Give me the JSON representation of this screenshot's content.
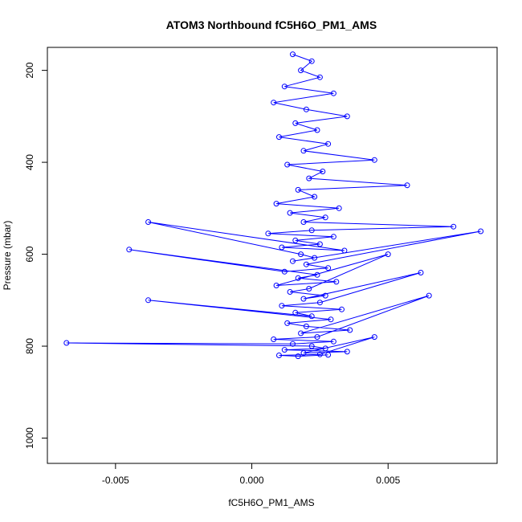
{
  "chart_data": {
    "type": "line",
    "title": "ATOM3 Northbound fC5H6O_PM1_AMS",
    "xlabel": "fC5H6O_PM1_AMS",
    "ylabel": "Pressure (mbar)",
    "xlim": [
      -0.0075,
      0.009
    ],
    "ylim": [
      1055,
      150
    ],
    "y_reversed": true,
    "xticks": [
      -0.005,
      0.0,
      0.005
    ],
    "xtick_labels": [
      "-0.005",
      "0.000",
      "0.005"
    ],
    "yticks": [
      200,
      400,
      600,
      800,
      1000
    ],
    "ytick_labels": [
      "200",
      "400",
      "600",
      "800",
      "1000"
    ],
    "grid": false,
    "legend": "none",
    "series": [
      {
        "color": "#0000ff",
        "marker": "open-circle",
        "x": [
          0.0015,
          0.0022,
          0.0018,
          0.0025,
          0.0012,
          0.003,
          0.0008,
          0.002,
          0.0035,
          0.0016,
          0.0024,
          0.001,
          0.0028,
          0.0019,
          0.0045,
          0.0013,
          0.0026,
          0.0021,
          0.0057,
          0.0017,
          0.0023,
          0.0009,
          0.0032,
          0.0014,
          0.0027,
          0.0019,
          0.0074,
          0.0022,
          0.0006,
          0.003,
          0.0016,
          0.0025,
          0.0011,
          0.0034,
          -0.0038,
          0.0018,
          0.0023,
          0.0015,
          0.0084,
          0.002,
          0.0028,
          0.0012,
          -0.0045,
          0.0024,
          0.0017,
          0.0031,
          0.0009,
          0.005,
          0.0021,
          0.0014,
          0.0027,
          0.0019,
          0.0062,
          0.0025,
          0.0011,
          0.0033,
          0.0016,
          0.0022,
          -0.0038,
          0.0029,
          0.0013,
          0.002,
          0.0036,
          0.0018,
          0.0065,
          0.0024,
          0.0008,
          0.003,
          0.0015,
          -0.0068,
          0.0022,
          0.0027,
          0.0012,
          0.0035,
          0.0019,
          0.0045,
          0.0025,
          0.001,
          0.0017,
          0.0028
        ],
        "y": [
          165,
          180,
          200,
          215,
          235,
          250,
          270,
          285,
          300,
          315,
          330,
          345,
          360,
          375,
          395,
          405,
          420,
          435,
          450,
          460,
          475,
          490,
          500,
          510,
          520,
          530,
          540,
          548,
          555,
          562,
          570,
          578,
          585,
          592,
          530,
          600,
          608,
          615,
          550,
          622,
          630,
          638,
          590,
          645,
          652,
          660,
          668,
          600,
          675,
          682,
          690,
          697,
          640,
          705,
          712,
          720,
          727,
          735,
          700,
          742,
          750,
          757,
          765,
          772,
          690,
          780,
          785,
          790,
          795,
          793,
          800,
          805,
          808,
          812,
          815,
          780,
          818,
          820,
          822,
          819
        ]
      }
    ]
  }
}
